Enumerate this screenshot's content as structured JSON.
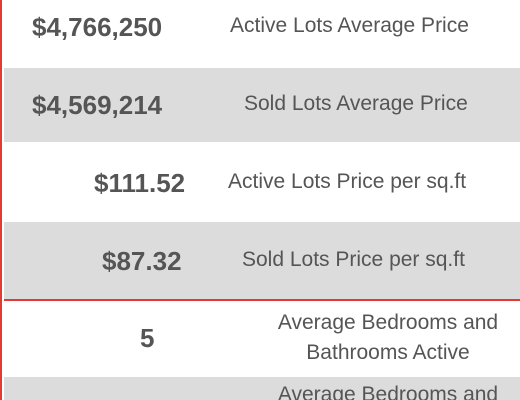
{
  "stats": [
    {
      "value": "$4,766,250",
      "label": "Active Lots Average Price"
    },
    {
      "value": "$4,569,214",
      "label": "Sold Lots Average Price"
    },
    {
      "value": "$111.52",
      "label": "Active Lots Price per sq.ft"
    },
    {
      "value": "$87.32",
      "label": "Sold Lots Price per sq.ft"
    },
    {
      "value": "5",
      "label_line1": "Average Bedrooms and",
      "label_line2": "Bathrooms Active"
    },
    {
      "label_line1": "Average Bedrooms and"
    }
  ],
  "colors": {
    "accent_border": "#e23b35",
    "row_gray": "#dcdcdc",
    "row_white": "#ffffff",
    "text": "#555555"
  }
}
